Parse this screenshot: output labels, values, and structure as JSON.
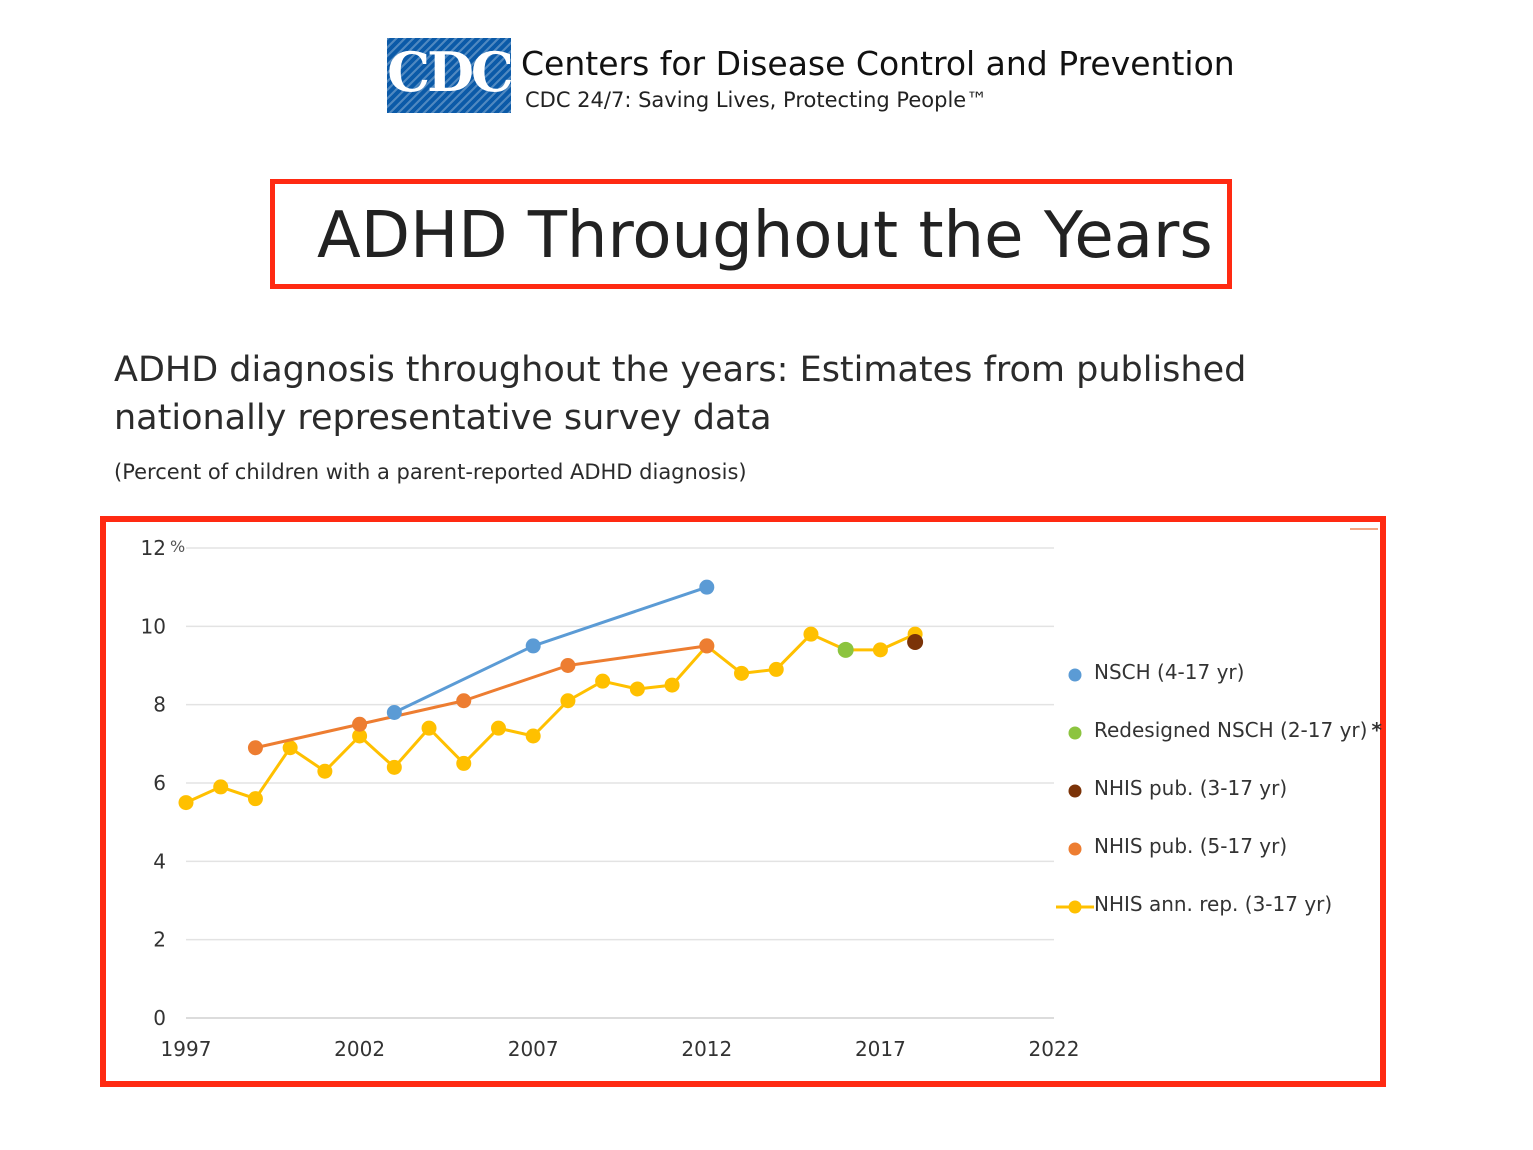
{
  "header": {
    "logo_text": "CDC",
    "org_name": "Centers for Disease Control and Prevention",
    "tagline": "CDC 24/7: Saving Lives, Protecting People™"
  },
  "page_title": "ADHD Throughout the Years",
  "colors": {
    "highlight_border": "#ff2a12",
    "logo_blue": "#0b5aa8",
    "nsch": "#5b9bd5",
    "redesigned_nsch": "#8cc43f",
    "nhis_pub_3_17": "#7b3308",
    "nhis_pub_5_17": "#ed7d31",
    "nhis_ann_rep": "#ffc000"
  },
  "chart_data": {
    "type": "line",
    "title": "ADHD diagnosis throughout the years: Estimates from published nationally representative survey data",
    "subtitle": "(Percent of children with a parent-reported ADHD diagnosis)",
    "y_unit": "%",
    "xlim": [
      1997,
      2022
    ],
    "ylim": [
      0,
      12
    ],
    "x_ticks": [
      "1997",
      "2002",
      "2007",
      "2012",
      "2017",
      "2022"
    ],
    "y_ticks": [
      "0",
      "2",
      "4",
      "6",
      "8",
      "10",
      "12"
    ],
    "grid": true,
    "legend_position": "right",
    "series": [
      {
        "name": "NSCH (4-17 yr)",
        "color": "#5b9bd5",
        "line": true,
        "legend_line": false,
        "points": [
          [
            2003,
            7.8
          ],
          [
            2007,
            9.5
          ],
          [
            2012,
            11.0
          ]
        ]
      },
      {
        "name": "Redesigned NSCH (2-17 yr)",
        "legend_suffix": "*",
        "color": "#8cc43f",
        "line": false,
        "legend_line": false,
        "points": [
          [
            2016,
            9.4
          ]
        ]
      },
      {
        "name": "NHIS pub. (3-17 yr)",
        "color": "#7b3308",
        "line": false,
        "legend_line": false,
        "points": [
          [
            2018,
            9.6
          ]
        ]
      },
      {
        "name": "NHIS pub. (5-17 yr)",
        "color": "#ed7d31",
        "line": true,
        "legend_line": false,
        "points": [
          [
            1999,
            6.9
          ],
          [
            2002,
            7.5
          ],
          [
            2005,
            8.1
          ],
          [
            2008,
            9.0
          ],
          [
            2012,
            9.5
          ]
        ]
      },
      {
        "name": "NHIS ann. rep. (3-17 yr)",
        "color": "#ffc000",
        "line": true,
        "legend_line": true,
        "points": [
          [
            1997,
            5.5
          ],
          [
            1998,
            5.9
          ],
          [
            1999,
            5.6
          ],
          [
            2000,
            6.9
          ],
          [
            2001,
            6.3
          ],
          [
            2002,
            7.2
          ],
          [
            2003,
            6.4
          ],
          [
            2004,
            7.4
          ],
          [
            2005,
            6.5
          ],
          [
            2006,
            7.4
          ],
          [
            2007,
            7.2
          ],
          [
            2008,
            8.1
          ],
          [
            2009,
            8.6
          ],
          [
            2010,
            8.4
          ],
          [
            2011,
            8.5
          ],
          [
            2012,
            9.5
          ],
          [
            2013,
            8.8
          ],
          [
            2014,
            8.9
          ],
          [
            2015,
            9.8
          ],
          [
            2016,
            9.4
          ],
          [
            2017,
            9.4
          ],
          [
            2018,
            9.8
          ]
        ]
      }
    ]
  }
}
